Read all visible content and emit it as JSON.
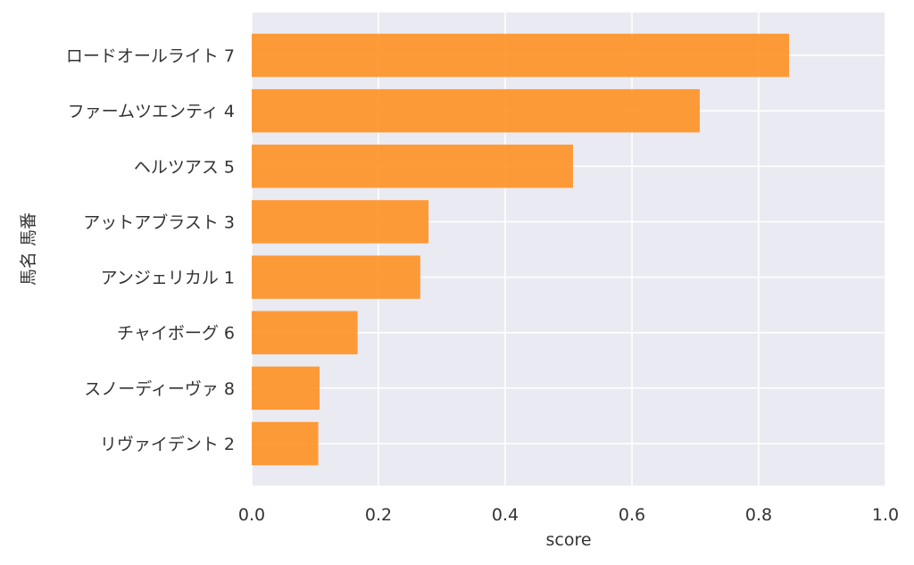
{
  "colors": {
    "bar": "#ff9124",
    "plot_background": "#eaeaf2",
    "grid": "#ffffff",
    "text": "#333333"
  },
  "chart_data": {
    "type": "bar",
    "orientation": "horizontal",
    "xlabel": "score",
    "ylabel": "馬名 馬番",
    "xlim": [
      0,
      1.0
    ],
    "xticks": [
      "0.0",
      "0.2",
      "0.4",
      "0.6",
      "0.8",
      "1.0"
    ],
    "grid": true,
    "categories": [
      "ロードオールライト 7",
      "ファームツエンティ 4",
      "ヘルツアス 5",
      "アットアブラスト 3",
      "アンジェリカル 1",
      "チャイボーグ 6",
      "スノーディーヴァ 8",
      "リヴァイデント 2"
    ],
    "values": [
      0.848,
      0.707,
      0.507,
      0.279,
      0.266,
      0.167,
      0.107,
      0.105
    ]
  }
}
